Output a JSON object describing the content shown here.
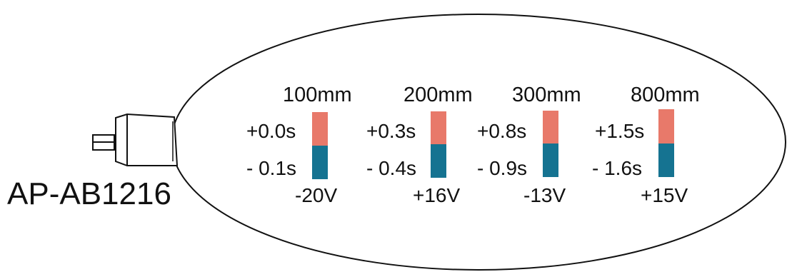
{
  "device": {
    "model": "AP-AB1216"
  },
  "colors": {
    "positive": "#e8796a",
    "negative": "#157391",
    "outline": "#111111"
  },
  "measurements": [
    {
      "distance": "100mm",
      "plus_time": "+0.0s",
      "minus_time": "- 0.1s",
      "voltage": "-20V"
    },
    {
      "distance": "200mm",
      "plus_time": "+0.3s",
      "minus_time": "- 0.4s",
      "voltage": "+16V"
    },
    {
      "distance": "300mm",
      "plus_time": "+0.8s",
      "minus_time": "- 0.9s",
      "voltage": "-13V"
    },
    {
      "distance": "800mm",
      "plus_time": "+1.5s",
      "minus_time": "- 1.6s",
      "voltage": "+15V"
    }
  ]
}
